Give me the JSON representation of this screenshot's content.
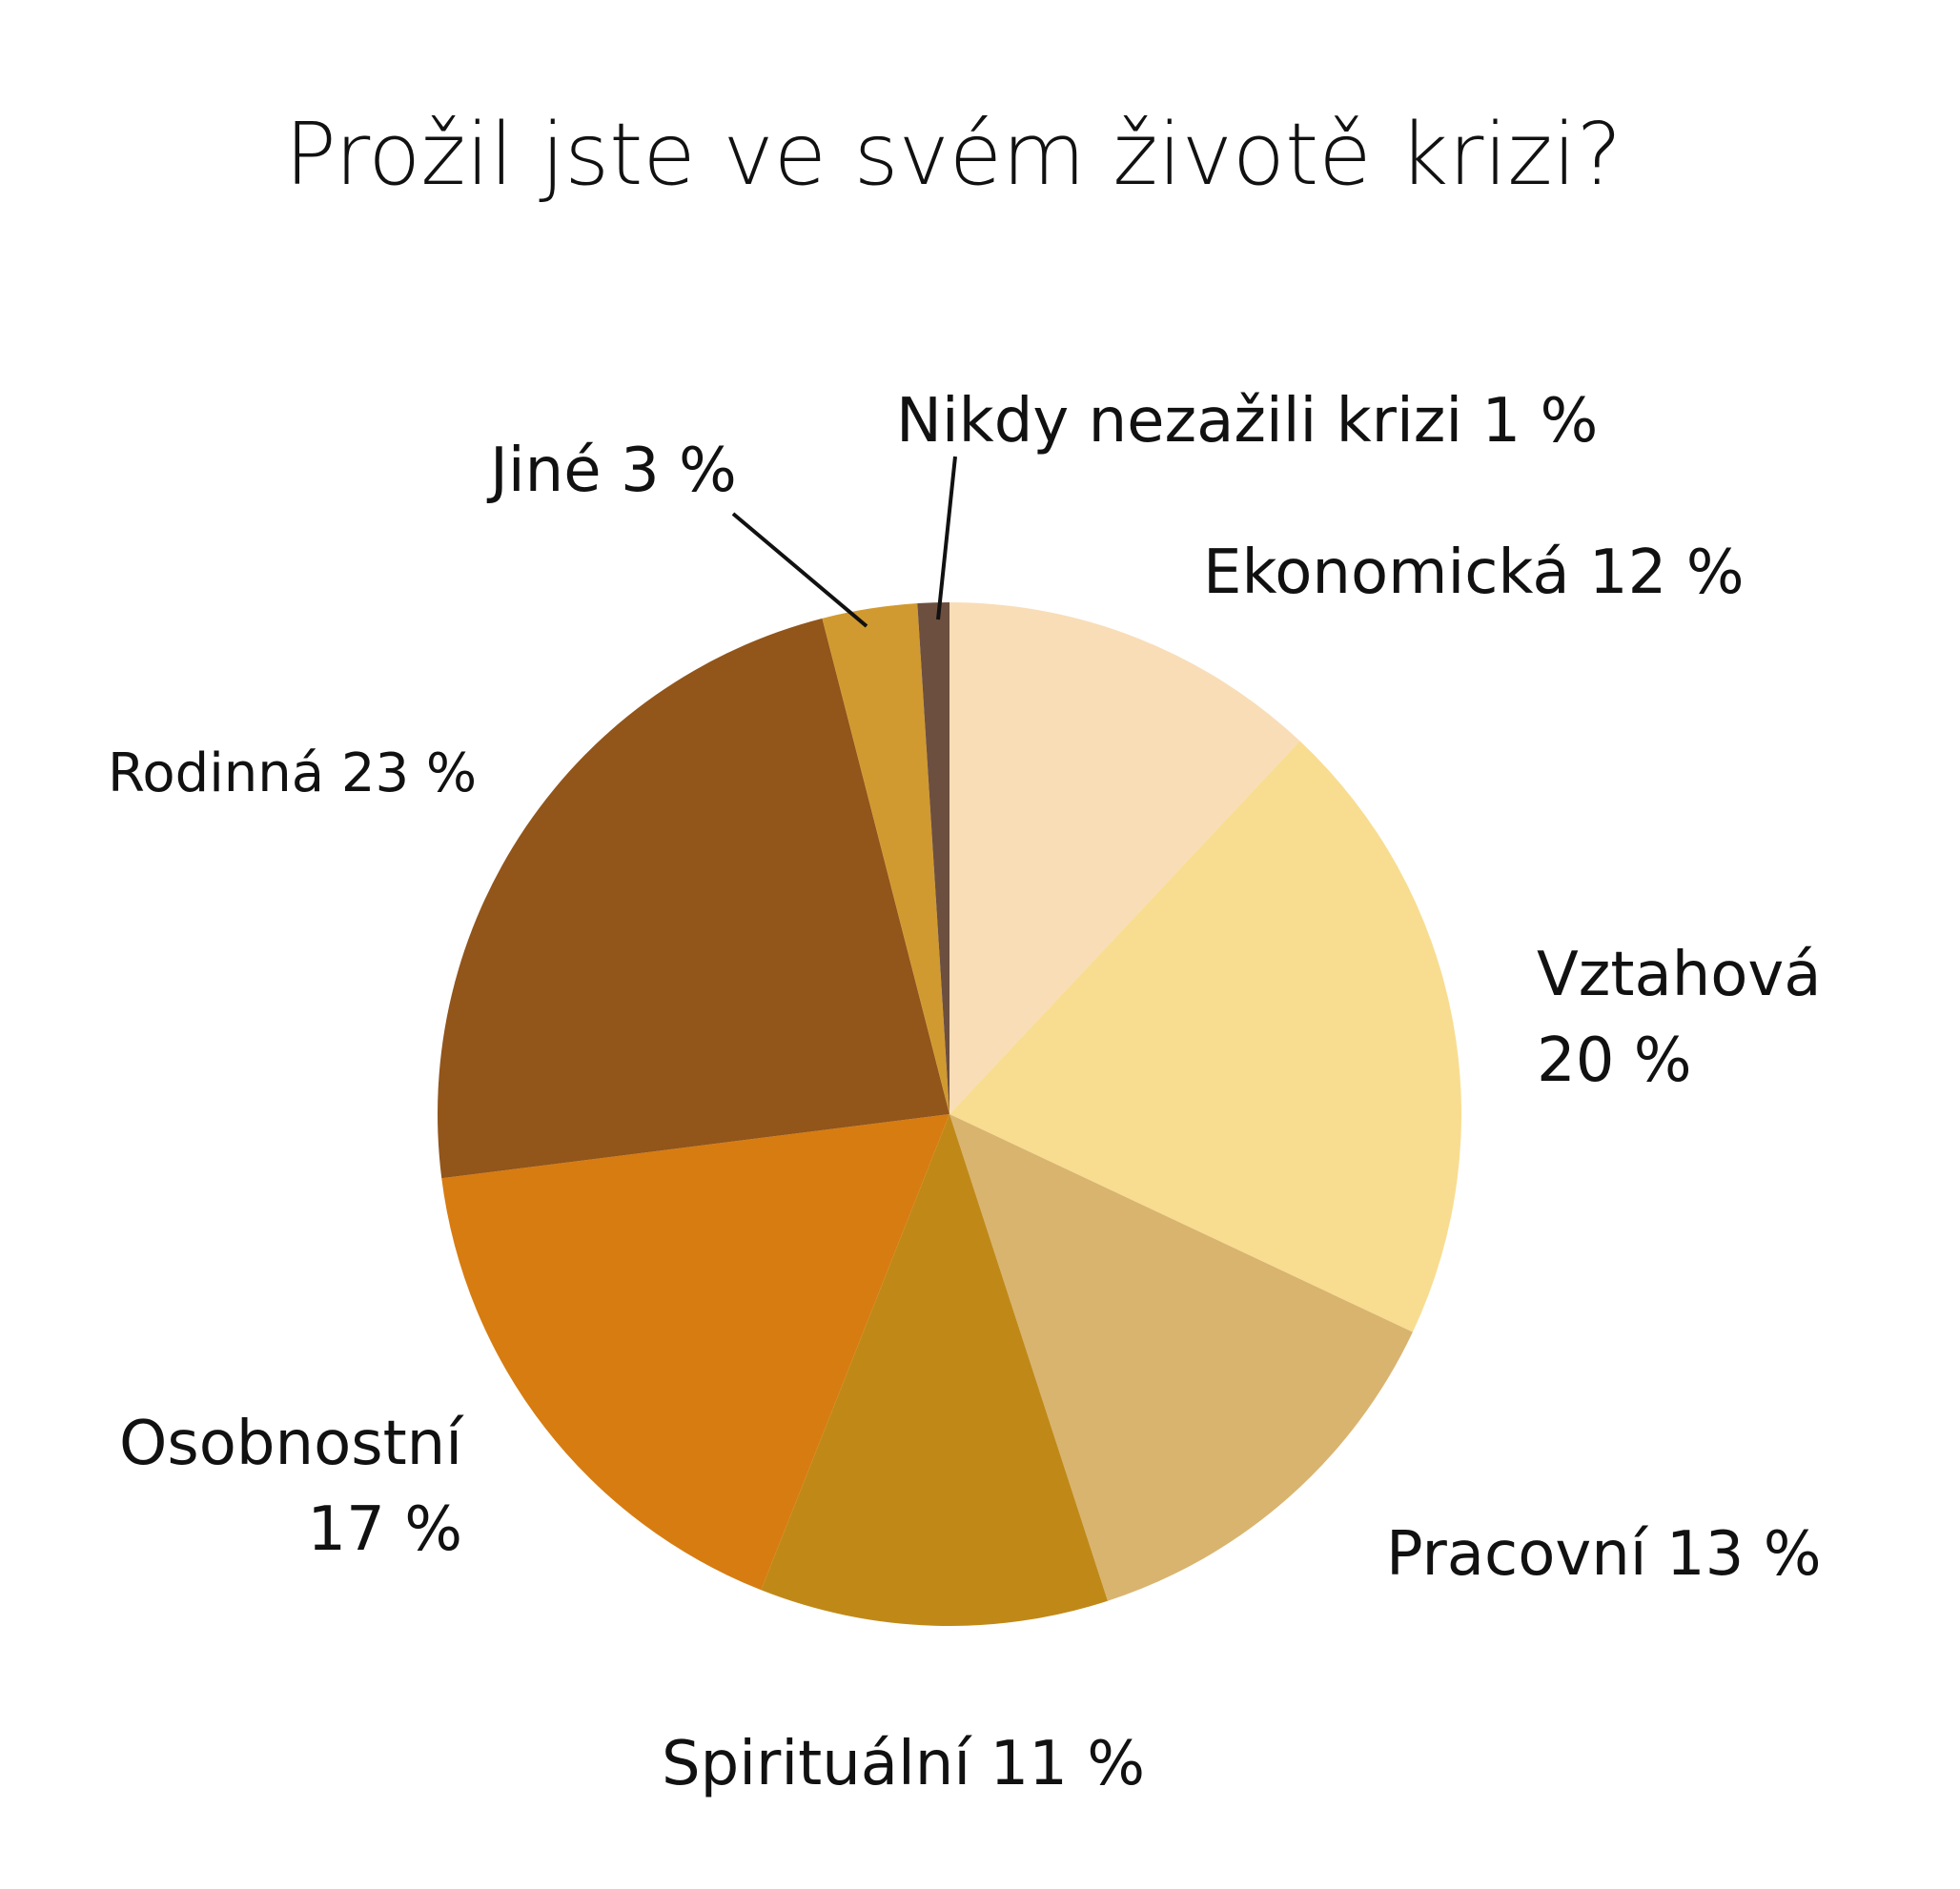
{
  "chart_data": {
    "type": "pie",
    "title": "Prožil jste ve svém životě krizi?",
    "start": "12 o'clock",
    "direction": "clockwise",
    "slices": [
      {
        "label": "Ekonomická 12 %",
        "value": 12,
        "color": "#f8ddb7"
      },
      {
        "label": "Vztahová 20 %",
        "value": 20,
        "color": "#f8dd91"
      },
      {
        "label": "Pracovní 13 %",
        "value": 13,
        "color": "#d9b46f"
      },
      {
        "label": "Spirituální 11 %",
        "value": 11,
        "color": "#c08917"
      },
      {
        "label": "Osobnostní 17 %",
        "value": 17,
        "color": "#d77c11"
      },
      {
        "label": "Rodinná 23 %",
        "value": 23,
        "color": "#92551a"
      },
      {
        "label": "Jiné 3 %",
        "value": 3,
        "color": "#d19a30"
      },
      {
        "label": "Nikdy nezažili krizi 1 %",
        "value": 1,
        "color": "#6d4f3f"
      }
    ],
    "label_lines": {
      "ekonomicka": "Ekonomická 12 %",
      "vztahova_1": "Vztahová",
      "vztahova_2": "20 %",
      "pracovni": "Pracovní 13 %",
      "spiritualni": "Spirituální 11 %",
      "osobnostni_1": "Osobnostní",
      "osobnostni_2": "17 %",
      "rodinna": "Rodinná 23 %",
      "jine": "Jiné 3 %",
      "nikdy": "Nikdy nezažili krizi 1 %"
    }
  }
}
